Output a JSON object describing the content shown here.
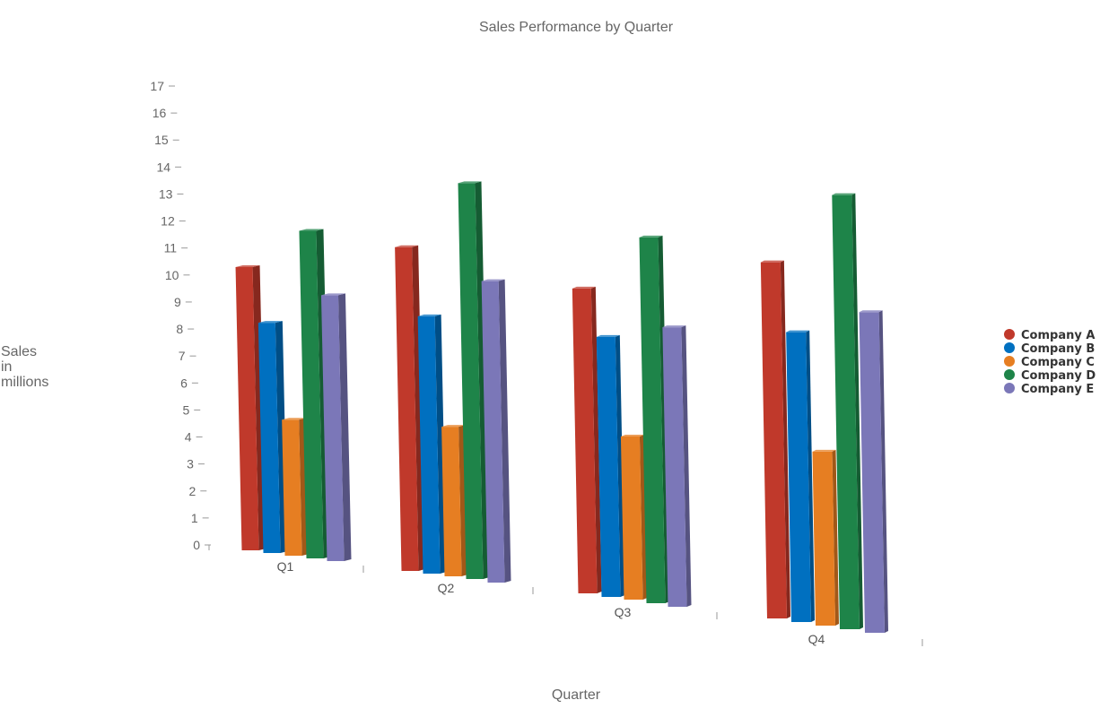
{
  "chart_data": {
    "type": "bar",
    "title": "Sales Performance by Quarter",
    "xlabel": "Quarter",
    "ylabel_lines": [
      "Sales",
      "in",
      "millions"
    ],
    "categories": [
      "Q1",
      "Q2",
      "Q3",
      "Q4"
    ],
    "ylim": [
      0,
      17
    ],
    "yticks": [
      "0",
      "1",
      "2",
      "3",
      "4",
      "5",
      "6",
      "7",
      "8",
      "9",
      "10",
      "11",
      "12",
      "13",
      "14",
      "15",
      "16",
      "17"
    ],
    "legend_position": "right",
    "series": [
      {
        "name": "Company A",
        "color": "#c0392b",
        "values": [
          10.5,
          12,
          11.3,
          13.2
        ]
      },
      {
        "name": "Company B",
        "color": "#0070c0",
        "values": [
          8.5,
          9.5,
          9.6,
          10.7
        ]
      },
      {
        "name": "Company C",
        "color": "#e67e22",
        "values": [
          5,
          5.5,
          6,
          6.4
        ]
      },
      {
        "name": "Company D",
        "color": "#1e8449",
        "values": [
          12,
          14.5,
          13.4,
          15.9
        ]
      },
      {
        "name": "Company E",
        "color": "#7b77b8",
        "values": [
          9.7,
          11,
          10.2,
          11.7
        ]
      }
    ]
  }
}
